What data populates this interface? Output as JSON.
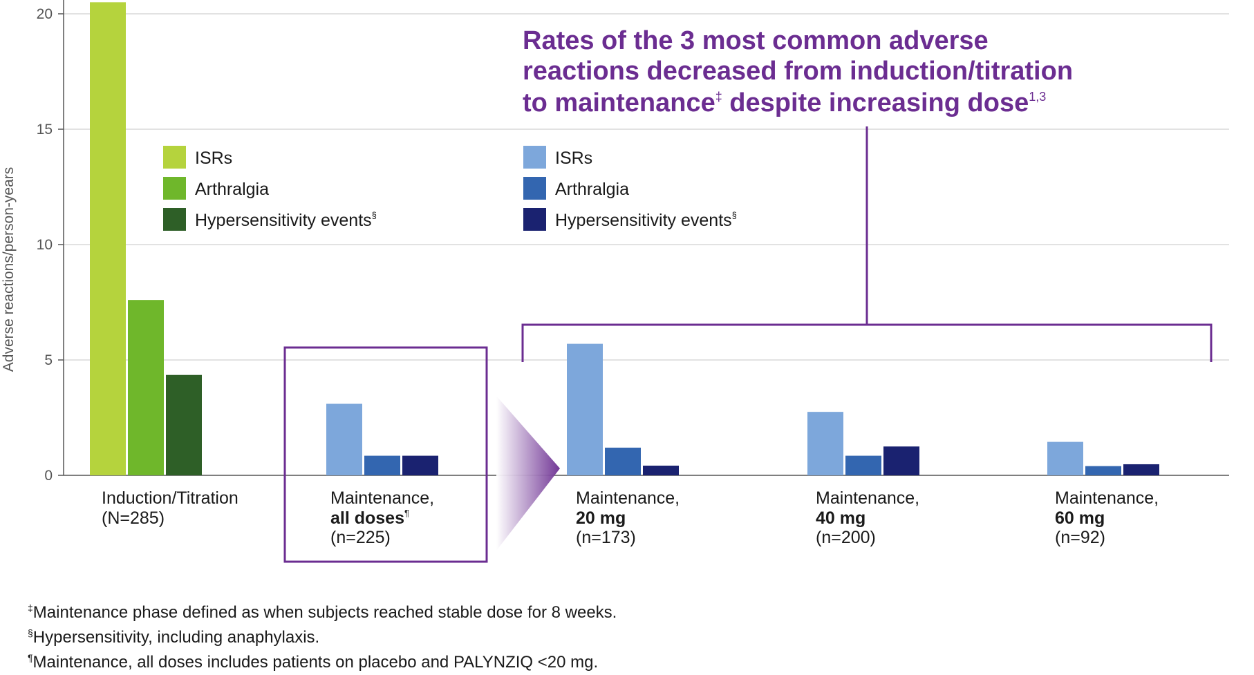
{
  "headline": {
    "line1": "Rates of the 3 most common adverse",
    "line2": "reactions decreased from induction/titration",
    "line3_pre": "to maintenance",
    "line3_sup": "‡",
    "line3_post": " despite increasing dose",
    "line3_ref": "1,3"
  },
  "legend_left": [
    {
      "label": "ISRs",
      "sup": "",
      "color": "#b5d33d"
    },
    {
      "label": "Arthralgia",
      "sup": "",
      "color": "#6fb72b"
    },
    {
      "label": "Hypersensitivity events",
      "sup": "§",
      "color": "#2e5f27"
    }
  ],
  "legend_right": [
    {
      "label": "ISRs",
      "sup": "",
      "color": "#7da7db"
    },
    {
      "label": "Arthralgia",
      "sup": "",
      "color": "#3366b0"
    },
    {
      "label": "Hypersensitivity events",
      "sup": "§",
      "color": "#1a2270"
    }
  ],
  "chart_data": {
    "type": "bar",
    "ylabel": "Adverse reactions/person-years",
    "ylim": [
      0,
      20
    ],
    "yticks": [
      0,
      5,
      10,
      15,
      20
    ],
    "grid": true,
    "categories": [
      {
        "line1": "Induction/Titration",
        "line2_bold": "",
        "line2_sup": "",
        "line3": "(N=285)"
      },
      {
        "line1": "Maintenance,",
        "line2_bold": "all doses",
        "line2_sup": "¶",
        "line3": "(n=225)"
      },
      {
        "line1": "Maintenance,",
        "line2_bold": "20 mg",
        "line2_sup": "",
        "line3": "(n=173)"
      },
      {
        "line1": "Maintenance,",
        "line2_bold": "40 mg",
        "line2_sup": "",
        "line3": "(n=200)"
      },
      {
        "line1": "Maintenance,",
        "line2_bold": "60 mg",
        "line2_sup": "",
        "line3": "(n=92)"
      }
    ],
    "series": [
      {
        "name": "ISRs",
        "values": [
          20.5,
          3.1,
          5.7,
          2.75,
          1.45
        ]
      },
      {
        "name": "Arthralgia",
        "values": [
          7.6,
          0.85,
          1.2,
          0.85,
          0.4
        ]
      },
      {
        "name": "Hypersensitivity events",
        "values": [
          4.35,
          0.85,
          0.42,
          1.25,
          0.48
        ]
      }
    ],
    "bar_colors": [
      [
        "#b5d33d",
        "#6fb72b",
        "#2e5f27"
      ],
      [
        "#7da7db",
        "#3366b0",
        "#1a2270"
      ],
      [
        "#7da7db",
        "#3366b0",
        "#1a2270"
      ],
      [
        "#7da7db",
        "#3366b0",
        "#1a2270"
      ],
      [
        "#7da7db",
        "#3366b0",
        "#1a2270"
      ]
    ],
    "accent_color": "#6b2d91"
  },
  "footnotes": [
    {
      "sym": "‡",
      "text": "Maintenance phase defined as when subjects reached stable dose for 8 weeks."
    },
    {
      "sym": "§",
      "text": "Hypersensitivity, including anaphylaxis."
    },
    {
      "sym": "¶",
      "text": "Maintenance, all doses includes patients on placebo and PALYNZIQ <20 mg."
    }
  ]
}
